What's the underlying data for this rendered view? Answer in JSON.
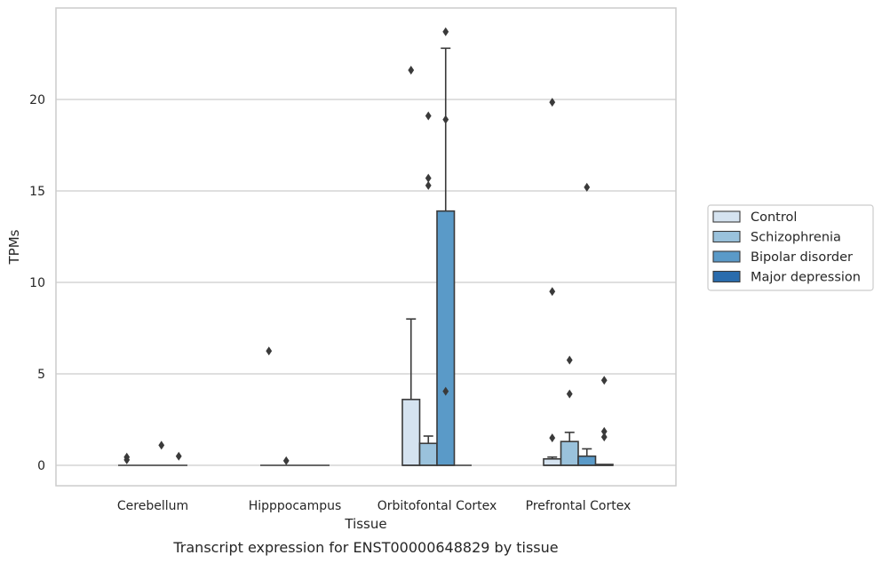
{
  "chart_data": {
    "type": "box",
    "title": "",
    "caption": "Transcript expression for ENST00000648829 by tissue",
    "xlabel": "Tissue",
    "ylabel": "TPMs",
    "ylim": [
      -1.2,
      25
    ],
    "yticks": [
      0,
      5,
      10,
      15,
      20
    ],
    "grid": "horizontal",
    "legend_position": "right",
    "categories": [
      "Cerebellum",
      "Hipppocampus",
      "Orbitofontal Cortex",
      "Prefrontal Cortex"
    ],
    "series": [
      {
        "name": "Control",
        "color": "#d5e3f0",
        "boxes": [
          {
            "q1": 0,
            "median": 0,
            "q3": 0,
            "whisker_low": 0,
            "whisker_high": 0,
            "outliers": [
              0.3,
              0.45
            ]
          },
          {
            "q1": 0,
            "median": 0,
            "q3": 0,
            "whisker_low": 0,
            "whisker_high": 0,
            "outliers": [
              6.25
            ]
          },
          {
            "q1": 0,
            "median": 0,
            "q3": 3.6,
            "whisker_low": 0,
            "whisker_high": 8.0,
            "outliers": [
              21.6
            ]
          },
          {
            "q1": 0,
            "median": 0,
            "q3": 0.35,
            "whisker_low": 0,
            "whisker_high": 0.45,
            "outliers": [
              1.5,
              9.5,
              19.85
            ]
          }
        ]
      },
      {
        "name": "Schizophrenia",
        "color": "#9ac2dc",
        "boxes": [
          {
            "q1": 0,
            "median": 0,
            "q3": 0,
            "whisker_low": 0,
            "whisker_high": 0,
            "outliers": []
          },
          {
            "q1": 0,
            "median": 0,
            "q3": 0,
            "whisker_low": 0,
            "whisker_high": 0,
            "outliers": [
              0.25
            ]
          },
          {
            "q1": 0,
            "median": 0,
            "q3": 1.2,
            "whisker_low": 0,
            "whisker_high": 1.6,
            "outliers": [
              15.3,
              15.7,
              19.1
            ]
          },
          {
            "q1": 0,
            "median": 0,
            "q3": 1.3,
            "whisker_low": 0,
            "whisker_high": 1.8,
            "outliers": [
              3.9,
              5.75
            ]
          }
        ]
      },
      {
        "name": "Bipolar disorder",
        "color": "#5a9ac8",
        "boxes": [
          {
            "q1": 0,
            "median": 0,
            "q3": 0,
            "whisker_low": 0,
            "whisker_high": 0,
            "outliers": [
              1.1
            ]
          },
          {
            "q1": 0,
            "median": 0,
            "q3": 0,
            "whisker_low": 0,
            "whisker_high": 0,
            "outliers": []
          },
          {
            "q1": 0,
            "median": 0,
            "q3": 13.9,
            "whisker_low": 0,
            "whisker_high": 22.8,
            "outliers": [
              4.05,
              18.9,
              23.7
            ]
          },
          {
            "q1": 0,
            "median": 0,
            "q3": 0.5,
            "whisker_low": 0,
            "whisker_high": 0.9,
            "outliers": [
              15.2
            ]
          }
        ]
      },
      {
        "name": "Major depression",
        "color": "#2a6cad",
        "boxes": [
          {
            "q1": 0,
            "median": 0,
            "q3": 0,
            "whisker_low": 0,
            "whisker_high": 0,
            "outliers": [
              0.5
            ]
          },
          {
            "q1": 0,
            "median": 0,
            "q3": 0,
            "whisker_low": 0,
            "whisker_high": 0,
            "outliers": []
          },
          {
            "q1": 0,
            "median": 0,
            "q3": 0,
            "whisker_low": 0,
            "whisker_high": 0,
            "outliers": []
          },
          {
            "q1": 0,
            "median": 0,
            "q3": 0.05,
            "whisker_low": 0,
            "whisker_high": 0.05,
            "outliers": [
              1.55,
              1.85,
              4.65
            ]
          }
        ]
      }
    ]
  },
  "colors": {
    "grid": "#cccccc",
    "frame": "#cccccc",
    "edge": "#3a3a3a",
    "text": "#262626"
  }
}
